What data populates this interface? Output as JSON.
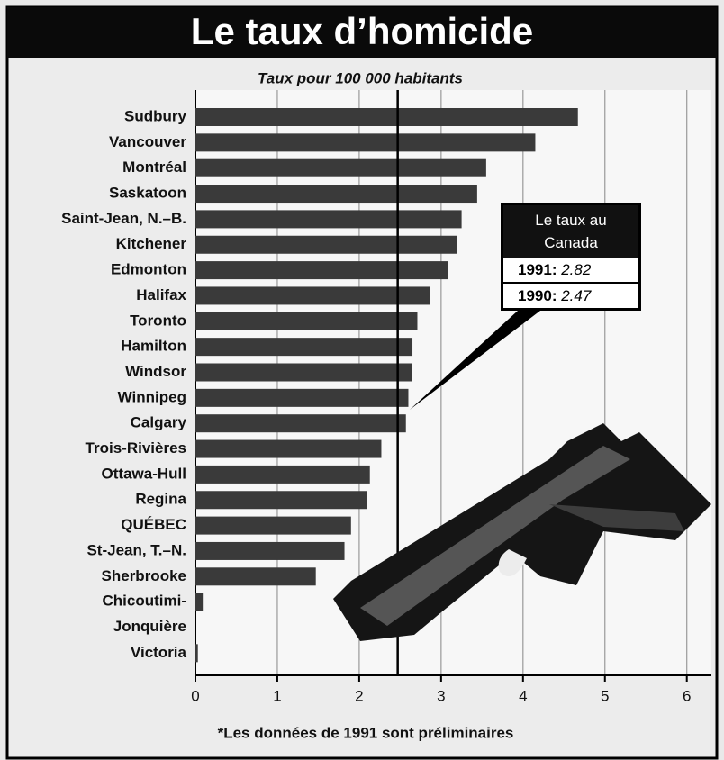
{
  "chart_data": {
    "type": "hbar",
    "title": "Le taux d’homicide",
    "subtitle": "Taux pour 100 000 habitants",
    "footnote": "*Les données de 1991 sont préliminaires",
    "categories": [
      "Sudbury",
      "Vancouver",
      "Montréal",
      "Saskatoon",
      "Saint-Jean, N.–B.",
      "Kitchener",
      "Edmonton",
      "Halifax",
      "Toronto",
      "Hamilton",
      "Windsor",
      "Winnipeg",
      "Calgary",
      "Trois-Rivières",
      "Ottawa-Hull",
      "Regina",
      "QUÉBEC",
      "St-Jean, T.–N.",
      "Sherbrooke",
      "Chicoutimi-Jonquière",
      "Victoria"
    ],
    "values": [
      4.67,
      4.15,
      3.55,
      3.44,
      3.25,
      3.19,
      3.08,
      2.86,
      2.71,
      2.65,
      2.64,
      2.6,
      2.57,
      2.27,
      2.13,
      2.09,
      1.9,
      1.82,
      1.47,
      0.09,
      0.03
    ],
    "color": "#3a3a3a",
    "xlim": [
      0,
      6.3
    ],
    "xticks": [
      0,
      1,
      2,
      3,
      4,
      5,
      6
    ],
    "grid": true,
    "annotation": {
      "title": "Le taux au Canada",
      "rates": [
        {
          "label": "1991:",
          "value": 2.82
        },
        {
          "label": "1990:",
          "value": 2.47
        }
      ]
    }
  }
}
